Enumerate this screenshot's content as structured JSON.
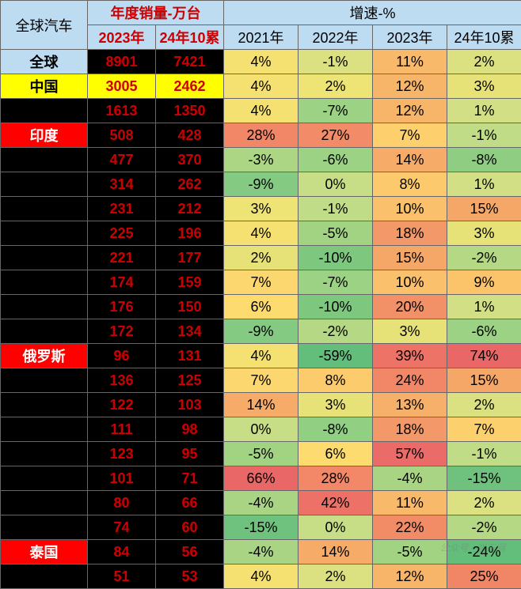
{
  "header": {
    "region_title": "全球汽车",
    "sales_group": "年度销量-万台",
    "growth_group": "增速-%",
    "sales_cols": [
      "2023年",
      "24年10累"
    ],
    "growth_cols": [
      "2021年",
      "2022年",
      "2023年",
      "24年10累"
    ]
  },
  "rows": [
    {
      "region": "全球",
      "region_style": "region-blue",
      "sales": [
        "8901",
        "7421"
      ],
      "sales_bg": "sales-black-bg",
      "growth": [
        "4%",
        "-1%",
        "11%",
        "2%"
      ],
      "growth_bg": [
        "#f5e171",
        "#dbe081",
        "#f8b96a",
        "#dbe081"
      ]
    },
    {
      "region": "中国",
      "region_style": "region-yellow",
      "sales": [
        "3005",
        "2462"
      ],
      "sales_bg": "sales-yellow-bg",
      "growth": [
        "4%",
        "2%",
        "12%",
        "3%"
      ],
      "growth_bg": [
        "#f5e171",
        "#eee375",
        "#f7b569",
        "#e6e278"
      ]
    },
    {
      "region": "",
      "region_style": "region-black",
      "sales": [
        "1613",
        "1350"
      ],
      "sales_bg": "sales-black-bg",
      "growth": [
        "4%",
        "-7%",
        "12%",
        "1%"
      ],
      "growth_bg": [
        "#f5e171",
        "#9bd283",
        "#f7b569",
        "#d2df84"
      ]
    },
    {
      "region": "印度",
      "region_style": "region-red",
      "sales": [
        "508",
        "428"
      ],
      "sales_bg": "sales-black-bg",
      "growth": [
        "28%",
        "27%",
        "7%",
        "-1%"
      ],
      "growth_bg": [
        "#f28767",
        "#f28b67",
        "#fdd06d",
        "#c0dc87"
      ]
    },
    {
      "region": "",
      "region_style": "region-black",
      "sales": [
        "477",
        "370"
      ],
      "sales_bg": "sales-black-bg",
      "growth": [
        "-3%",
        "-6%",
        "14%",
        "-8%"
      ],
      "growth_bg": [
        "#acd684",
        "#9bd283",
        "#f6ab68",
        "#8fcd83"
      ]
    },
    {
      "region": "",
      "region_style": "region-black",
      "sales": [
        "314",
        "262"
      ],
      "sales_bg": "sales-black-bg",
      "growth": [
        "-9%",
        "0%",
        "8%",
        "1%"
      ],
      "growth_bg": [
        "#84ca82",
        "#c8de86",
        "#fcca6c",
        "#d2df84"
      ]
    },
    {
      "region": "",
      "region_style": "region-black",
      "sales": [
        "231",
        "212"
      ],
      "sales_bg": "sales-black-bg",
      "growth": [
        "3%",
        "-1%",
        "10%",
        "15%"
      ],
      "growth_bg": [
        "#eee375",
        "#c0dc87",
        "#fac06b",
        "#f5a768"
      ]
    },
    {
      "region": "",
      "region_style": "region-black",
      "sales": [
        "225",
        "196"
      ],
      "sales_bg": "sales-black-bg",
      "growth": [
        "4%",
        "-5%",
        "18%",
        "3%"
      ],
      "growth_bg": [
        "#f5e171",
        "#a2d383",
        "#f39868",
        "#e6e278"
      ]
    },
    {
      "region": "",
      "region_style": "region-black",
      "sales": [
        "221",
        "177"
      ],
      "sales_bg": "sales-black-bg",
      "growth": [
        "2%",
        "-10%",
        "15%",
        "-2%"
      ],
      "growth_bg": [
        "#e6e278",
        "#7ec77f",
        "#f5a768",
        "#b5d885"
      ]
    },
    {
      "region": "",
      "region_style": "region-black",
      "sales": [
        "174",
        "159"
      ],
      "sales_bg": "sales-black-bg",
      "growth": [
        "7%",
        "-7%",
        "10%",
        "9%"
      ],
      "growth_bg": [
        "#fcd66e",
        "#9bd283",
        "#fac06b",
        "#fbc46b"
      ]
    },
    {
      "region": "",
      "region_style": "region-black",
      "sales": [
        "176",
        "150"
      ],
      "sales_bg": "sales-black-bg",
      "growth": [
        "6%",
        "-10%",
        "20%",
        "1%"
      ],
      "growth_bg": [
        "#fddb6f",
        "#7ec77f",
        "#f29167",
        "#d2df84"
      ]
    },
    {
      "region": "",
      "region_style": "region-black",
      "sales": [
        "172",
        "134"
      ],
      "sales_bg": "sales-black-bg",
      "growth": [
        "-9%",
        "-2%",
        "3%",
        "-6%"
      ],
      "growth_bg": [
        "#84ca82",
        "#b5d885",
        "#e6e278",
        "#9bd283"
      ]
    },
    {
      "region": "俄罗斯",
      "region_style": "region-red",
      "sales": [
        "96",
        "131"
      ],
      "sales_bg": "sales-black-bg",
      "growth": [
        "4%",
        "-59%",
        "39%",
        "74%"
      ],
      "growth_bg": [
        "#f5e171",
        "#63be7b",
        "#ee7367",
        "#e96867"
      ]
    },
    {
      "region": "",
      "region_style": "region-black",
      "sales": [
        "136",
        "125"
      ],
      "sales_bg": "sales-black-bg",
      "growth": [
        "7%",
        "8%",
        "24%",
        "15%"
      ],
      "growth_bg": [
        "#fcd66e",
        "#fccb6c",
        "#f18767",
        "#f5a768"
      ]
    },
    {
      "region": "",
      "region_style": "region-black",
      "sales": [
        "122",
        "103"
      ],
      "sales_bg": "sales-black-bg",
      "growth": [
        "14%",
        "3%",
        "13%",
        "2%"
      ],
      "growth_bg": [
        "#f6ab68",
        "#e6e278",
        "#f7b069",
        "#dbe081"
      ]
    },
    {
      "region": "",
      "region_style": "region-black",
      "sales": [
        "111",
        "98"
      ],
      "sales_bg": "sales-black-bg",
      "growth": [
        "0%",
        "-8%",
        "18%",
        "7%"
      ],
      "growth_bg": [
        "#c8de86",
        "#91cf83",
        "#f39868",
        "#fcd06d"
      ]
    },
    {
      "region": "",
      "region_style": "region-black",
      "sales": [
        "123",
        "95"
      ],
      "sales_bg": "sales-black-bg",
      "growth": [
        "-5%",
        "6%",
        "57%",
        "-1%"
      ],
      "growth_bg": [
        "#a2d383",
        "#fddb6f",
        "#ea6b67",
        "#c0dc87"
      ]
    },
    {
      "region": "",
      "region_style": "region-black",
      "sales": [
        "101",
        "71"
      ],
      "sales_bg": "sales-black-bg",
      "growth": [
        "66%",
        "28%",
        "-4%",
        "-15%"
      ],
      "growth_bg": [
        "#e96867",
        "#f28867",
        "#a8d484",
        "#6ec27d"
      ]
    },
    {
      "region": "",
      "region_style": "region-black",
      "sales": [
        "80",
        "66"
      ],
      "sales_bg": "sales-black-bg",
      "growth": [
        "-4%",
        "42%",
        "11%",
        "2%"
      ],
      "growth_bg": [
        "#a8d484",
        "#ed7167",
        "#f8ba6a",
        "#dbe081"
      ]
    },
    {
      "region": "",
      "region_style": "region-black",
      "sales": [
        "74",
        "60"
      ],
      "sales_bg": "sales-black-bg",
      "growth": [
        "-15%",
        "0%",
        "22%",
        "-2%"
      ],
      "growth_bg": [
        "#6ec27d",
        "#c8de86",
        "#f28c67",
        "#b5d885"
      ]
    },
    {
      "region": "泰国",
      "region_style": "region-red",
      "sales": [
        "84",
        "56"
      ],
      "sales_bg": "sales-black-bg",
      "growth": [
        "-4%",
        "14%",
        "-5%",
        "-24%"
      ],
      "growth_bg": [
        "#a8d484",
        "#f6ab68",
        "#a2d383",
        "#63be7b"
      ]
    },
    {
      "region": "",
      "region_style": "region-black",
      "sales": [
        "51",
        "53"
      ],
      "sales_bg": "sales-black-bg",
      "growth": [
        "4%",
        "2%",
        "12%",
        "25%"
      ],
      "growth_bg": [
        "#f5e171",
        "#dbe081",
        "#f7b569",
        "#f18667"
      ]
    }
  ],
  "watermark": "公众号 · 崔东网"
}
